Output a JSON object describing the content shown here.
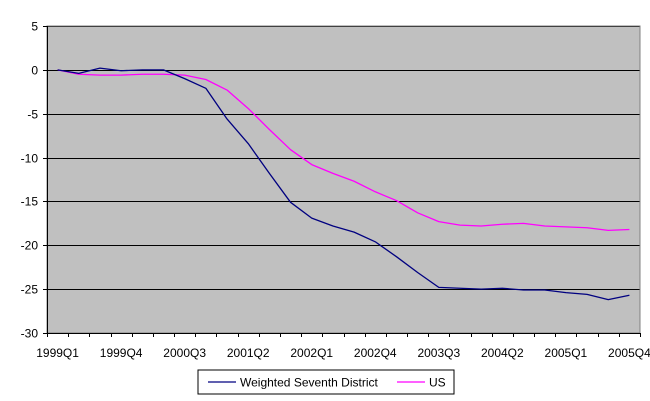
{
  "chart_data": {
    "type": "line",
    "title": "",
    "xlabel": "",
    "ylabel": "",
    "ylim": [
      -30,
      5
    ],
    "yticks": [
      5,
      0,
      -5,
      -10,
      -15,
      -20,
      -25,
      -30
    ],
    "grid": true,
    "legend_position": "bottom",
    "x": [
      "1999Q1",
      "1999Q2",
      "1999Q3",
      "1999Q4",
      "2000Q1",
      "2000Q2",
      "2000Q3",
      "2000Q4",
      "2001Q1",
      "2001Q2",
      "2001Q3",
      "2001Q4",
      "2002Q1",
      "2002Q2",
      "2002Q3",
      "2002Q4",
      "2003Q1",
      "2003Q2",
      "2003Q3",
      "2003Q4",
      "2004Q1",
      "2004Q2",
      "2004Q3",
      "2004Q4",
      "2005Q1",
      "2005Q2",
      "2005Q3",
      "2005Q4"
    ],
    "xtick_labels": [
      {
        "index": 0,
        "label": "1999Q1"
      },
      {
        "index": 3,
        "label": "1999Q4"
      },
      {
        "index": 6,
        "label": "2000Q3"
      },
      {
        "index": 9,
        "label": "2001Q2"
      },
      {
        "index": 12,
        "label": "2002Q1"
      },
      {
        "index": 15,
        "label": "2002Q4"
      },
      {
        "index": 18,
        "label": "2003Q3"
      },
      {
        "index": 21,
        "label": "2004Q2"
      },
      {
        "index": 24,
        "label": "2005Q1"
      },
      {
        "index": 27,
        "label": "2005Q4"
      }
    ],
    "series": [
      {
        "name": "Weighted Seventh District",
        "color": "#000080",
        "values": [
          0,
          -0.4,
          0.2,
          -0.1,
          0,
          0,
          -1,
          -2.1,
          -5.6,
          -8.4,
          -11.8,
          -15.1,
          -16.9,
          -17.8,
          -18.5,
          -19.6,
          -21.3,
          -23.1,
          -24.8,
          -24.9,
          -25.0,
          -24.9,
          -25.1,
          -25.1,
          -25.4,
          -25.6,
          -26.2,
          -25.7
        ]
      },
      {
        "name": "US",
        "color": "#ff00ff",
        "values": [
          0,
          -0.5,
          -0.6,
          -0.6,
          -0.5,
          -0.5,
          -0.6,
          -1.1,
          -2.3,
          -4.4,
          -6.8,
          -9.1,
          -10.8,
          -11.8,
          -12.7,
          -13.9,
          -14.9,
          -16.3,
          -17.3,
          -17.7,
          -17.8,
          -17.6,
          -17.5,
          -17.8,
          -17.9,
          -18.0,
          -18.3,
          -18.2
        ]
      }
    ]
  }
}
